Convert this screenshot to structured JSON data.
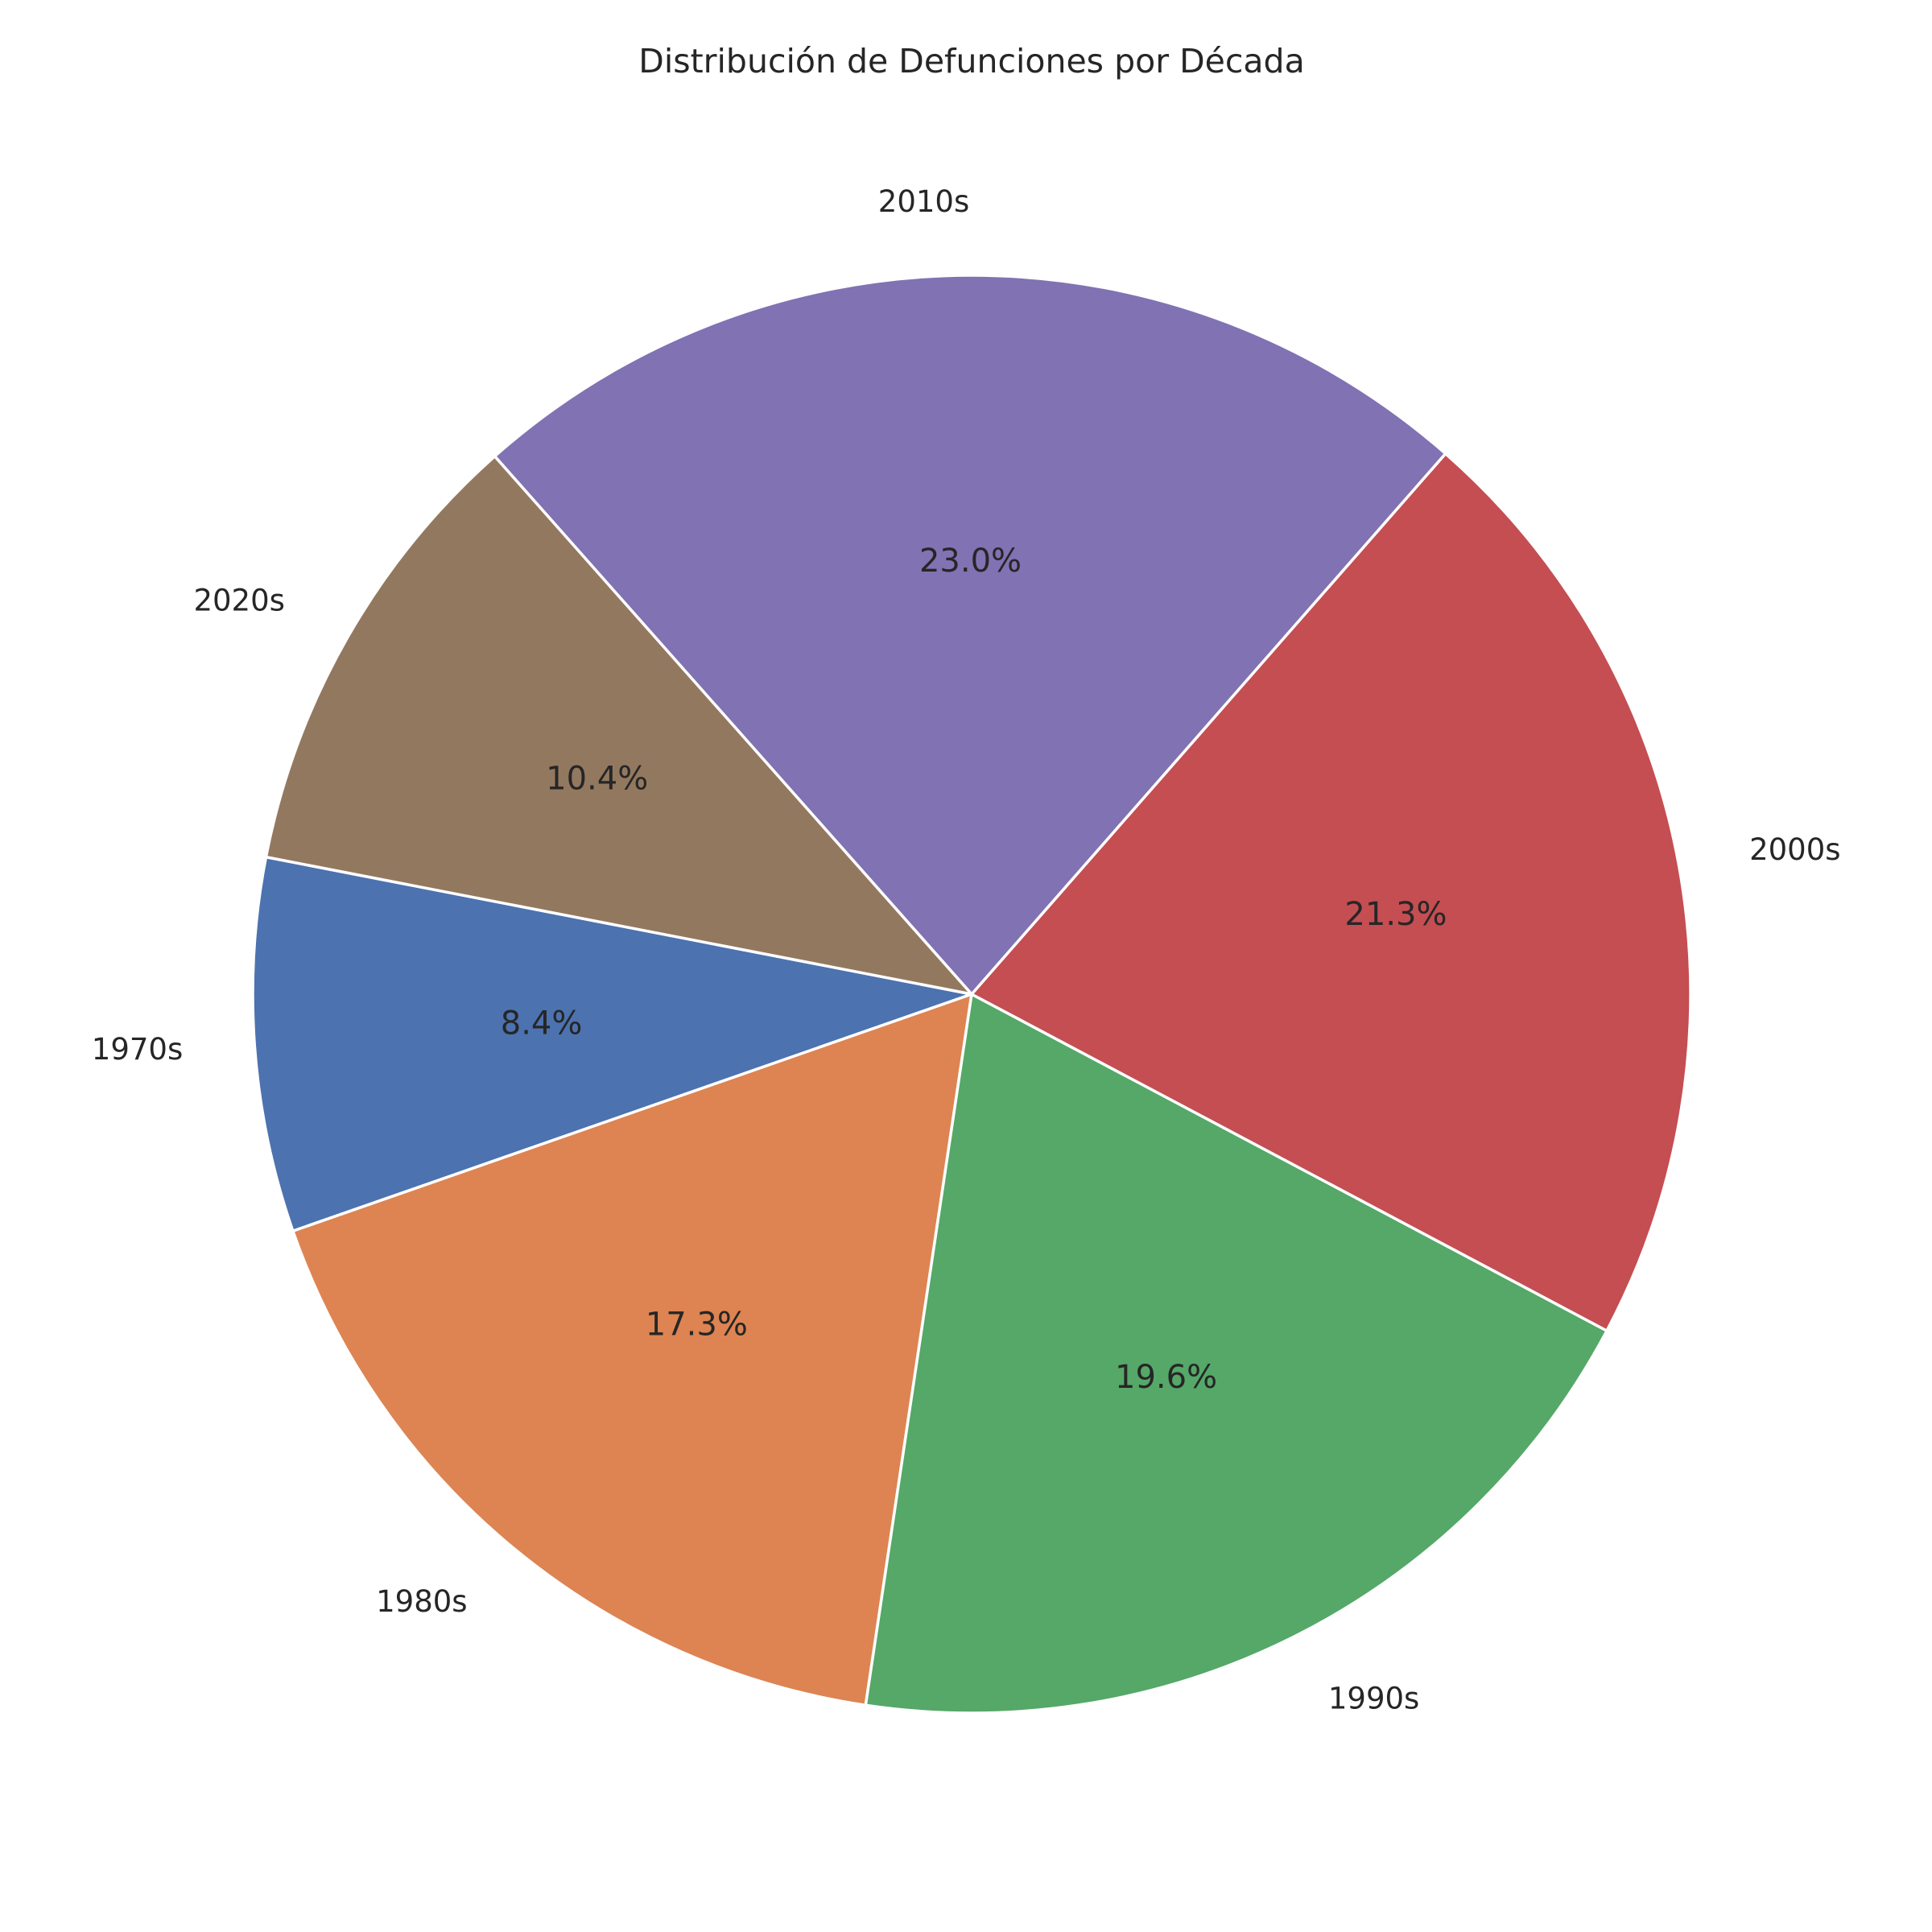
{
  "chart_data": {
    "type": "pie",
    "title": "Distribución de Defunciones por Década",
    "start_angle_deg": 169,
    "direction": "counterclockwise",
    "slices": [
      {
        "label": "1970s",
        "value": 8.4,
        "pct_label": "8.4%",
        "color": "#4c72b0"
      },
      {
        "label": "1980s",
        "value": 17.3,
        "pct_label": "17.3%",
        "color": "#dd8452"
      },
      {
        "label": "1990s",
        "value": 19.6,
        "pct_label": "19.6%",
        "color": "#55a868"
      },
      {
        "label": "2000s",
        "value": 21.3,
        "pct_label": "21.3%",
        "color": "#c44e52"
      },
      {
        "label": "2010s",
        "value": 23.0,
        "pct_label": "23.0%",
        "color": "#8172b3"
      },
      {
        "label": "2020s",
        "value": 10.4,
        "pct_label": "10.4%",
        "color": "#937860"
      }
    ]
  }
}
